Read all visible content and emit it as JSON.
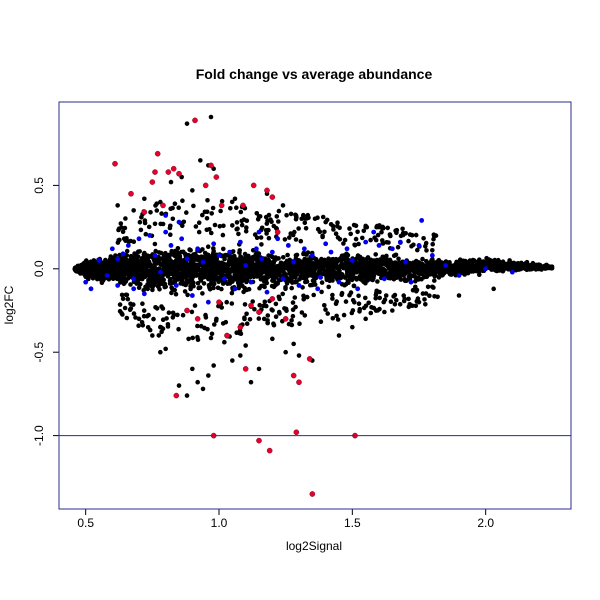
{
  "chart_data": {
    "type": "scatter",
    "title": "Fold change vs average abundance",
    "xlabel": "log2Signal",
    "ylabel": "log2FC",
    "xlim": [
      0.4,
      2.32
    ],
    "ylim": [
      -1.44,
      1.0
    ],
    "x_ticks": [
      0.5,
      1.0,
      1.5,
      2.0
    ],
    "x_tick_labels": [
      "0.5",
      "1.0",
      "1.5",
      "2.0"
    ],
    "y_ticks": [
      -1.0,
      -0.5,
      0.0,
      0.5
    ],
    "y_tick_labels": [
      "-1.0",
      "-0.5",
      "0.0",
      "0.5"
    ],
    "reference_line_y": -1.0,
    "grid": false,
    "colors": {
      "frame": "#2b2b8c",
      "reference_line": "#2b2b8c",
      "all_points": "#000000",
      "blue_points": "#0000ee",
      "red_points": "#e8002d"
    },
    "cloud_envelope": {
      "x_start": 0.46,
      "x_end": 2.25,
      "center_curve": [
        [
          0.46,
          0.0
        ],
        [
          0.6,
          0.0
        ],
        [
          0.8,
          0.0
        ],
        [
          1.0,
          0.0
        ],
        [
          1.2,
          -0.01
        ],
        [
          1.5,
          0.0
        ],
        [
          1.8,
          0.0
        ],
        [
          2.0,
          0.02
        ],
        [
          2.25,
          0.01
        ]
      ],
      "half_width_curve": [
        [
          0.46,
          0.01
        ],
        [
          0.5,
          0.08
        ],
        [
          0.6,
          0.13
        ],
        [
          0.7,
          0.17
        ],
        [
          0.8,
          0.2
        ],
        [
          0.9,
          0.21
        ],
        [
          1.0,
          0.2
        ],
        [
          1.2,
          0.17
        ],
        [
          1.5,
          0.14
        ],
        [
          1.8,
          0.1
        ],
        [
          2.0,
          0.06
        ],
        [
          2.2,
          0.03
        ],
        [
          2.25,
          0.01
        ]
      ]
    },
    "outliers_black": [
      [
        0.88,
        0.87
      ],
      [
        0.97,
        0.91
      ],
      [
        0.93,
        0.65
      ],
      [
        0.96,
        0.62
      ],
      [
        0.98,
        0.6
      ],
      [
        0.82,
        0.52
      ],
      [
        0.86,
        0.55
      ],
      [
        0.9,
        0.47
      ],
      [
        1.06,
        0.42
      ],
      [
        1.18,
        0.45
      ],
      [
        0.72,
        0.42
      ],
      [
        0.78,
        0.4
      ],
      [
        0.68,
        0.35
      ],
      [
        0.62,
        0.38
      ],
      [
        1.24,
        0.38
      ],
      [
        1.31,
        0.3
      ],
      [
        1.4,
        0.28
      ],
      [
        1.55,
        0.25
      ],
      [
        1.6,
        0.25
      ],
      [
        1.36,
        0.3
      ],
      [
        0.7,
        -0.3
      ],
      [
        0.75,
        -0.4
      ],
      [
        0.78,
        -0.5
      ],
      [
        0.8,
        -0.48
      ],
      [
        0.9,
        -0.6
      ],
      [
        0.92,
        -0.68
      ],
      [
        0.94,
        -0.72
      ],
      [
        0.96,
        -0.64
      ],
      [
        1.05,
        -0.55
      ],
      [
        1.08,
        -0.52
      ],
      [
        1.1,
        -0.46
      ],
      [
        1.12,
        -0.68
      ],
      [
        1.15,
        -0.6
      ],
      [
        1.2,
        -0.42
      ],
      [
        1.25,
        -0.5
      ],
      [
        1.3,
        -0.52
      ],
      [
        1.28,
        -0.45
      ],
      [
        1.35,
        -0.55
      ],
      [
        1.45,
        -0.4
      ],
      [
        1.5,
        -0.35
      ],
      [
        1.55,
        -0.3
      ],
      [
        1.65,
        -0.25
      ],
      [
        1.75,
        -0.2
      ],
      [
        1.9,
        -0.16
      ],
      [
        2.03,
        -0.12
      ],
      [
        0.85,
        -0.7
      ],
      [
        0.88,
        -0.76
      ],
      [
        0.98,
        -0.58
      ],
      [
        1.02,
        -0.44
      ]
    ],
    "blue_points": [
      [
        0.5,
        -0.08
      ],
      [
        0.52,
        -0.12
      ],
      [
        0.55,
        0.05
      ],
      [
        0.58,
        -0.04
      ],
      [
        0.6,
        0.12
      ],
      [
        0.62,
        -0.1
      ],
      [
        0.64,
        0.09
      ],
      [
        0.66,
        0.14
      ],
      [
        0.68,
        -0.06
      ],
      [
        0.7,
        0.18
      ],
      [
        0.72,
        -0.15
      ],
      [
        0.74,
        0.2
      ],
      [
        0.76,
        0.08
      ],
      [
        0.78,
        -0.02
      ],
      [
        0.8,
        0.22
      ],
      [
        0.82,
        0.14
      ],
      [
        0.84,
        -0.1
      ],
      [
        0.86,
        0.18
      ],
      [
        0.88,
        0.06
      ],
      [
        0.9,
        -0.16
      ],
      [
        0.92,
        0.12
      ],
      [
        0.94,
        0.04
      ],
      [
        0.96,
        -0.2
      ],
      [
        0.98,
        0.15
      ],
      [
        1.0,
        0.08
      ],
      [
        1.02,
        -0.06
      ],
      [
        1.04,
        0.1
      ],
      [
        1.06,
        -0.12
      ],
      [
        1.08,
        0.16
      ],
      [
        1.1,
        0.02
      ],
      [
        1.12,
        -0.08
      ],
      [
        1.14,
        0.12
      ],
      [
        1.16,
        0.06
      ],
      [
        1.18,
        -0.14
      ],
      [
        1.2,
        0.1
      ],
      [
        1.22,
        0.18
      ],
      [
        1.24,
        -0.06
      ],
      [
        1.26,
        0.14
      ],
      [
        1.28,
        0.04
      ],
      [
        1.3,
        -0.1
      ],
      [
        1.32,
        0.12
      ],
      [
        1.35,
        0.08
      ],
      [
        1.38,
        -0.05
      ],
      [
        1.4,
        0.15
      ],
      [
        1.42,
        0.1
      ],
      [
        1.45,
        -0.08
      ],
      [
        1.48,
        0.12
      ],
      [
        1.5,
        0.05
      ],
      [
        1.52,
        -0.12
      ],
      [
        1.55,
        0.16
      ],
      [
        1.58,
        0.22
      ],
      [
        1.6,
        0.14
      ],
      [
        1.62,
        -0.06
      ],
      [
        1.65,
        0.12
      ],
      [
        1.68,
        0.16
      ],
      [
        1.7,
        0.04
      ],
      [
        1.72,
        -0.08
      ],
      [
        1.75,
        0.14
      ],
      [
        1.76,
        0.29
      ],
      [
        1.8,
        0.08
      ],
      [
        1.85,
        0.02
      ],
      [
        1.9,
        -0.04
      ],
      [
        2.0,
        0.0
      ],
      [
        2.1,
        -0.02
      ],
      [
        1.37,
        -0.12
      ],
      [
        1.15,
        0.22
      ],
      [
        0.85,
        0.28
      ],
      [
        0.8,
        0.32
      ],
      [
        0.68,
        -0.12
      ],
      [
        0.62,
        0.06
      ]
    ],
    "red_points": [
      [
        0.61,
        0.63
      ],
      [
        0.91,
        0.89
      ],
      [
        0.77,
        0.69
      ],
      [
        0.76,
        0.58
      ],
      [
        0.83,
        0.6
      ],
      [
        0.72,
        0.34
      ],
      [
        0.67,
        0.45
      ],
      [
        0.85,
        0.57
      ],
      [
        0.81,
        0.58
      ],
      [
        0.97,
        0.62
      ],
      [
        0.99,
        0.55
      ],
      [
        0.95,
        0.5
      ],
      [
        1.01,
        0.38
      ],
      [
        1.09,
        0.38
      ],
      [
        1.13,
        0.5
      ],
      [
        1.18,
        0.47
      ],
      [
        1.2,
        0.43
      ],
      [
        1.22,
        0.22
      ],
      [
        0.75,
        0.52
      ],
      [
        0.79,
        0.38
      ],
      [
        1.0,
        -0.2
      ],
      [
        1.03,
        -0.4
      ],
      [
        1.08,
        -0.35
      ],
      [
        1.12,
        -0.22
      ],
      [
        1.15,
        -0.26
      ],
      [
        1.2,
        -0.18
      ],
      [
        1.1,
        -0.6
      ],
      [
        1.19,
        -1.09
      ],
      [
        1.15,
        -1.03
      ],
      [
        1.29,
        -0.98
      ],
      [
        1.35,
        -1.35
      ],
      [
        1.3,
        -0.68
      ],
      [
        1.34,
        -0.54
      ],
      [
        1.25,
        -0.3
      ],
      [
        0.84,
        -0.76
      ],
      [
        0.88,
        -0.25
      ],
      [
        0.92,
        -0.3
      ],
      [
        0.98,
        -1.0
      ],
      [
        1.51,
        -1.0
      ],
      [
        1.28,
        -0.64
      ]
    ]
  }
}
